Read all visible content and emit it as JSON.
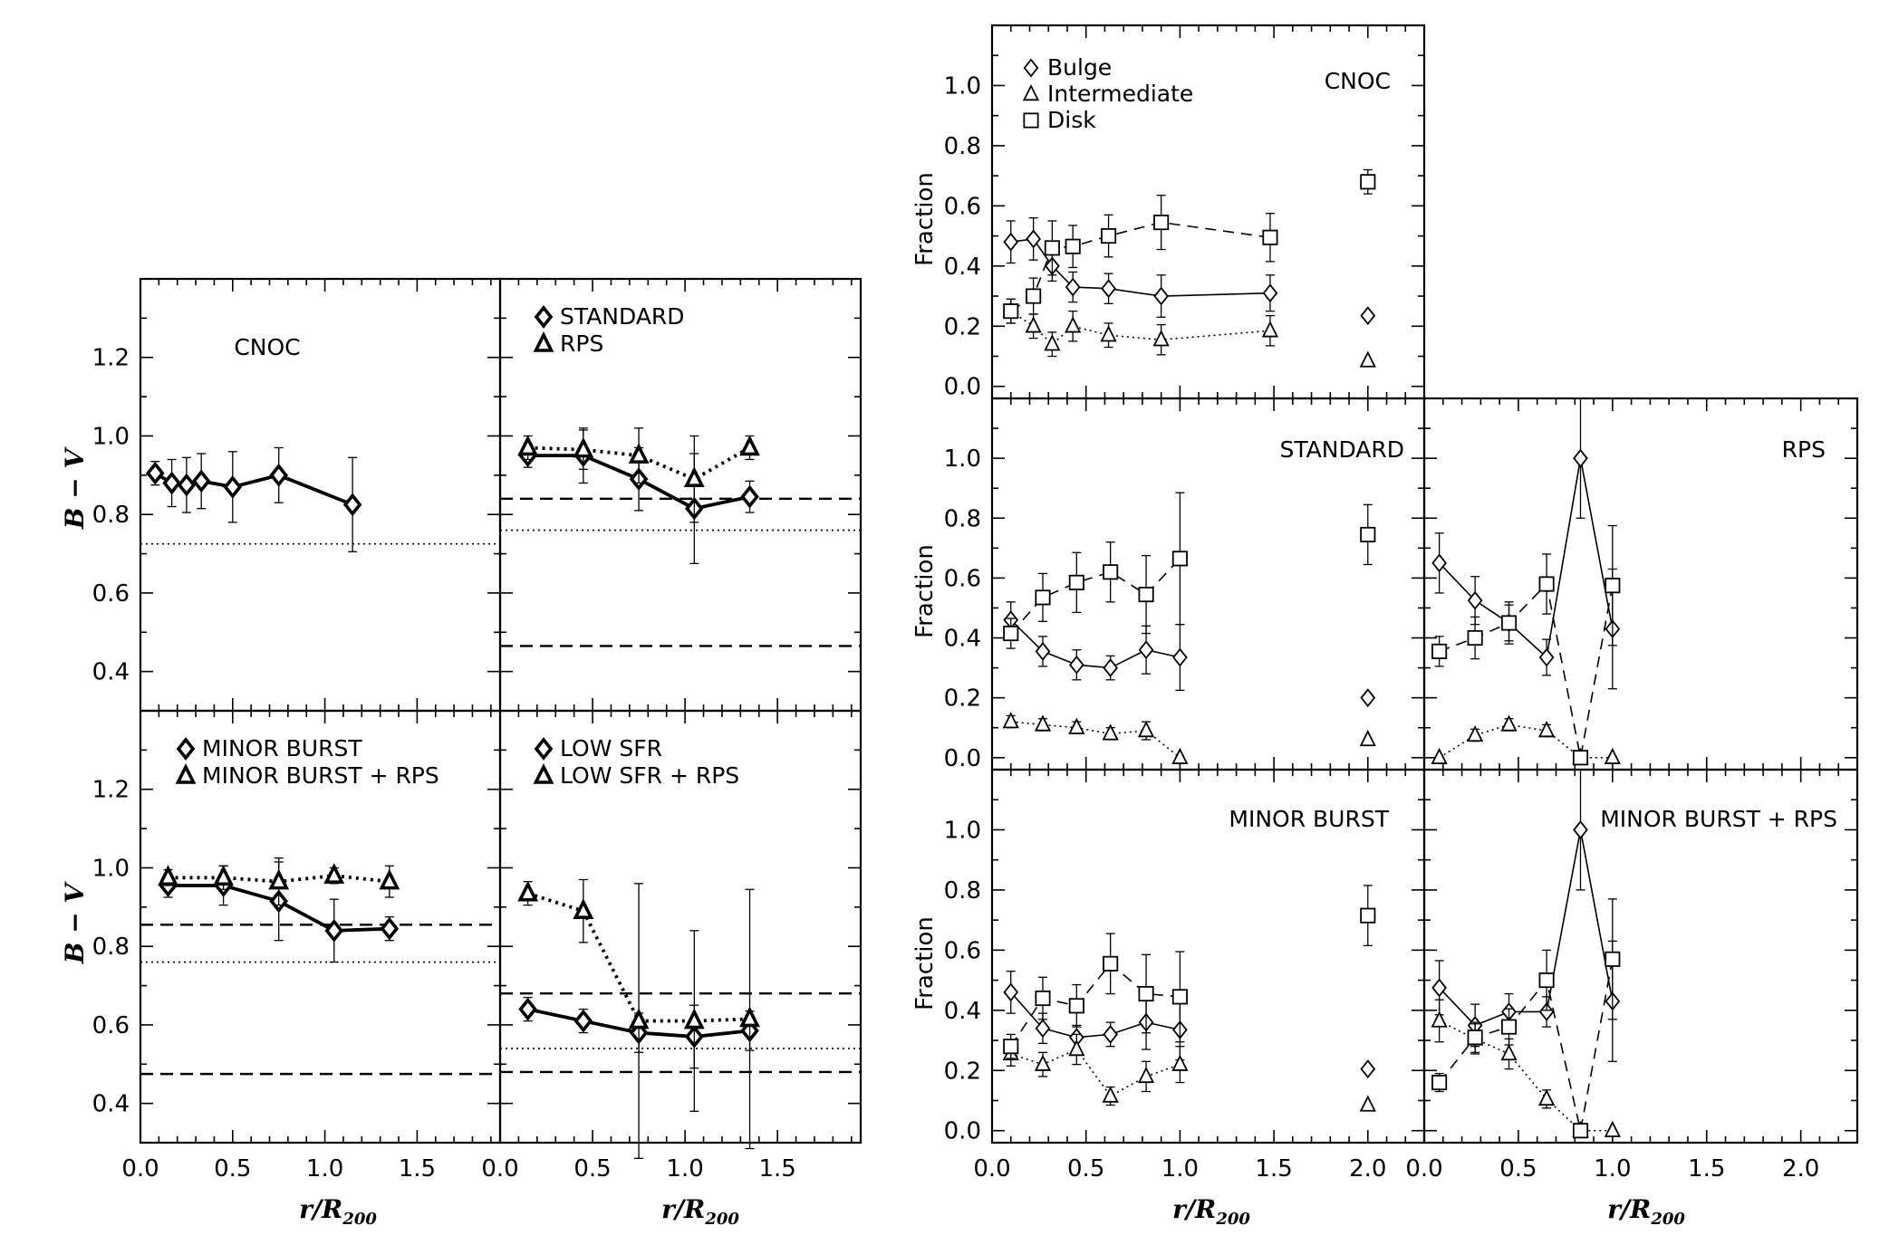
{
  "figure": {
    "left_ylabel": "B − V",
    "right_ylabel": "Fraction",
    "xlabel": "r/R200",
    "xlabel_main": "r/R",
    "xlabel_sub": "200"
  },
  "chart_data": [
    {
      "id": "bv-cnoc",
      "type": "line",
      "title": "CNOC",
      "xlim": [
        0,
        1.95
      ],
      "ylim": [
        0.3,
        1.4
      ],
      "yticks": [
        0.4,
        0.6,
        0.8,
        1.0,
        1.2
      ],
      "ylabel": "B − V",
      "xlabel": "",
      "legend": [],
      "hlines": [
        {
          "y": 0.725,
          "style": "dotted"
        }
      ],
      "series": [
        {
          "name": "CNOC",
          "marker": "diamond",
          "line": "solid",
          "weight": "bold",
          "x": [
            0.08,
            0.17,
            0.25,
            0.33,
            0.5,
            0.75,
            1.15
          ],
          "y": [
            0.905,
            0.88,
            0.875,
            0.885,
            0.87,
            0.9,
            0.825
          ],
          "err": [
            0.03,
            0.06,
            0.07,
            0.07,
            0.09,
            0.07,
            0.12
          ]
        }
      ]
    },
    {
      "id": "bv-standard",
      "type": "line",
      "title": "",
      "xlim": [
        0,
        1.95
      ],
      "ylim": [
        0.3,
        1.4
      ],
      "ylabel": "",
      "xlabel": "",
      "legend": [
        {
          "label": "STANDARD",
          "marker": "diamond"
        },
        {
          "label": "RPS",
          "marker": "triangle"
        }
      ],
      "hlines": [
        {
          "y": 0.84,
          "style": "dashed"
        },
        {
          "y": 0.76,
          "style": "dotted"
        },
        {
          "y": 0.465,
          "style": "dashed"
        }
      ],
      "series": [
        {
          "name": "STANDARD",
          "marker": "diamond",
          "line": "solid",
          "weight": "bold",
          "x": [
            0.15,
            0.45,
            0.75,
            1.05,
            1.35
          ],
          "y": [
            0.95,
            0.95,
            0.89,
            0.815,
            0.845
          ],
          "err": [
            0.03,
            0.07,
            0.08,
            0.14,
            0.04
          ]
        },
        {
          "name": "RPS",
          "marker": "triangle",
          "line": "dotted",
          "weight": "bold",
          "x": [
            0.15,
            0.45,
            0.75,
            1.05,
            1.35
          ],
          "y": [
            0.97,
            0.965,
            0.95,
            0.89,
            0.97
          ],
          "err": [
            0.03,
            0.05,
            0.07,
            0.11,
            0.03
          ]
        }
      ]
    },
    {
      "id": "bv-minor-burst",
      "type": "line",
      "title": "",
      "xlim": [
        0,
        1.95
      ],
      "ylim": [
        0.3,
        1.4
      ],
      "yticks": [
        0.4,
        0.6,
        0.8,
        1.0,
        1.2
      ],
      "xticks": [
        0.0,
        0.5,
        1.0,
        1.5
      ],
      "ylabel": "B − V",
      "xlabel": "r/R200",
      "legend": [
        {
          "label": "MINOR BURST",
          "marker": "diamond"
        },
        {
          "label": "MINOR BURST + RPS",
          "marker": "triangle"
        }
      ],
      "hlines": [
        {
          "y": 0.855,
          "style": "dashed"
        },
        {
          "y": 0.76,
          "style": "dotted"
        },
        {
          "y": 0.475,
          "style": "dashed"
        }
      ],
      "series": [
        {
          "name": "MINOR BURST",
          "marker": "diamond",
          "line": "solid",
          "weight": "bold",
          "x": [
            0.15,
            0.45,
            0.75,
            1.05,
            1.35
          ],
          "y": [
            0.955,
            0.955,
            0.915,
            0.84,
            0.845
          ],
          "err": [
            0.03,
            0.05,
            0.1,
            0.08,
            0.03
          ]
        },
        {
          "name": "MINOR BURST + RPS",
          "marker": "triangle",
          "line": "dotted",
          "weight": "bold",
          "x": [
            0.15,
            0.45,
            0.75,
            1.05,
            1.35
          ],
          "y": [
            0.975,
            0.975,
            0.965,
            0.98,
            0.965
          ],
          "err": [
            0.02,
            0.03,
            0.06,
            0.02,
            0.04
          ]
        }
      ]
    },
    {
      "id": "bv-low-sfr",
      "type": "line",
      "title": "",
      "xlim": [
        0,
        1.95
      ],
      "ylim": [
        0.3,
        1.4
      ],
      "xticks": [
        0.0,
        0.5,
        1.0,
        1.5
      ],
      "ylabel": "",
      "xlabel": "r/R200",
      "legend": [
        {
          "label": "LOW SFR",
          "marker": "diamond"
        },
        {
          "label": "LOW SFR + RPS",
          "marker": "triangle"
        }
      ],
      "hlines": [
        {
          "y": 0.68,
          "style": "dashed"
        },
        {
          "y": 0.54,
          "style": "dotted"
        },
        {
          "y": 0.48,
          "style": "dashed"
        }
      ],
      "series": [
        {
          "name": "LOW SFR",
          "marker": "diamond",
          "line": "solid",
          "weight": "bold",
          "x": [
            0.15,
            0.45,
            0.75,
            1.05,
            1.35
          ],
          "y": [
            0.64,
            0.61,
            0.58,
            0.57,
            0.585
          ],
          "err": [
            0.03,
            0.03,
            0.05,
            0.08,
            0.05
          ]
        },
        {
          "name": "LOW SFR + RPS",
          "marker": "triangle",
          "line": "dotted",
          "weight": "bold",
          "x": [
            0.15,
            0.45,
            0.75,
            1.05,
            1.35
          ],
          "y": [
            0.935,
            0.89,
            0.61,
            0.61,
            0.615
          ],
          "err": [
            0.03,
            0.08,
            0.35,
            0.23,
            0.33
          ]
        }
      ]
    },
    {
      "id": "frac-cnoc",
      "type": "line",
      "title": "CNOC",
      "xlim": [
        0,
        2.3
      ],
      "ylim": [
        -0.04,
        1.2
      ],
      "yticks": [
        0.0,
        0.2,
        0.4,
        0.6,
        0.8,
        1.0
      ],
      "ylabel": "Fraction",
      "xlabel": "",
      "legend": [
        {
          "label": "Bulge",
          "marker": "diamond"
        },
        {
          "label": "Intermediate",
          "marker": "triangle"
        },
        {
          "label": "Disk",
          "marker": "square"
        }
      ],
      "series": [
        {
          "name": "Bulge",
          "marker": "diamond",
          "line": "solid",
          "x": [
            0.1,
            0.22,
            0.32,
            0.43,
            0.62,
            0.9,
            1.48
          ],
          "y": [
            0.48,
            0.49,
            0.4,
            0.33,
            0.325,
            0.3,
            0.31
          ],
          "err": [
            0.07,
            0.07,
            0.05,
            0.05,
            0.05,
            0.07,
            0.06
          ]
        },
        {
          "name": "Intermediate",
          "marker": "triangle",
          "line": "dotted",
          "x": [
            0.1,
            0.22,
            0.32,
            0.43,
            0.62,
            0.9,
            1.48
          ],
          "y": [
            0.25,
            0.2,
            0.14,
            0.2,
            0.17,
            0.155,
            0.185
          ],
          "err": [
            0.04,
            0.04,
            0.04,
            0.05,
            0.04,
            0.05,
            0.05
          ]
        },
        {
          "name": "Disk",
          "marker": "square",
          "line": "dashed",
          "x": [
            0.1,
            0.22,
            0.32,
            0.43,
            0.62,
            0.9,
            1.48
          ],
          "y": [
            0.25,
            0.3,
            0.46,
            0.465,
            0.5,
            0.545,
            0.495
          ],
          "err": [
            0.04,
            0.06,
            0.09,
            0.07,
            0.07,
            0.09,
            0.08
          ]
        },
        {
          "name": "Bulge (total)",
          "marker": "diamond",
          "line": "none",
          "x": [
            2.0
          ],
          "y": [
            0.235
          ],
          "err": [
            0.0
          ]
        },
        {
          "name": "Intermediate (total)",
          "marker": "triangle",
          "line": "none",
          "x": [
            2.0
          ],
          "y": [
            0.085
          ],
          "err": [
            0.0
          ]
        },
        {
          "name": "Disk (total)",
          "marker": "square",
          "line": "none",
          "x": [
            2.0
          ],
          "y": [
            0.68
          ],
          "err": [
            0.04
          ]
        }
      ]
    },
    {
      "id": "frac-standard",
      "type": "line",
      "title": "STANDARD",
      "xlim": [
        0,
        2.3
      ],
      "ylim": [
        -0.04,
        1.2
      ],
      "yticks": [
        0.0,
        0.2,
        0.4,
        0.6,
        0.8,
        1.0
      ],
      "ylabel": "Fraction",
      "xlabel": "",
      "legend": [],
      "series": [
        {
          "name": "Bulge",
          "marker": "diamond",
          "line": "solid",
          "x": [
            0.1,
            0.27,
            0.45,
            0.63,
            0.82,
            1.0
          ],
          "y": [
            0.46,
            0.355,
            0.31,
            0.3,
            0.36,
            0.335
          ],
          "err": [
            0.06,
            0.05,
            0.05,
            0.04,
            0.08,
            0.11
          ]
        },
        {
          "name": "Intermediate",
          "marker": "triangle",
          "line": "dotted",
          "x": [
            0.1,
            0.27,
            0.45,
            0.63,
            0.82,
            1.0
          ],
          "y": [
            0.12,
            0.11,
            0.1,
            0.08,
            0.09,
            0.0
          ],
          "err": [
            0.02,
            0.02,
            0.02,
            0.02,
            0.03,
            0.0
          ]
        },
        {
          "name": "Disk",
          "marker": "square",
          "line": "dashed",
          "x": [
            0.1,
            0.27,
            0.45,
            0.63,
            0.82,
            1.0
          ],
          "y": [
            0.415,
            0.535,
            0.585,
            0.62,
            0.545,
            0.665
          ],
          "err": [
            0.05,
            0.08,
            0.1,
            0.1,
            0.13,
            0.22
          ]
        },
        {
          "name": "Bulge (total)",
          "marker": "diamond",
          "line": "none",
          "x": [
            2.0
          ],
          "y": [
            0.2
          ],
          "err": [
            0.0
          ]
        },
        {
          "name": "Intermediate (total)",
          "marker": "triangle",
          "line": "none",
          "x": [
            2.0
          ],
          "y": [
            0.06
          ],
          "err": [
            0.0
          ]
        },
        {
          "name": "Disk (total)",
          "marker": "square",
          "line": "none",
          "x": [
            2.0
          ],
          "y": [
            0.745
          ],
          "err": [
            0.1
          ]
        }
      ]
    },
    {
      "id": "frac-rps",
      "type": "line",
      "title": "RPS",
      "xlim": [
        0,
        2.3
      ],
      "ylim": [
        -0.04,
        1.2
      ],
      "ylabel": "",
      "xlabel": "",
      "legend": [],
      "series": [
        {
          "name": "Bulge",
          "marker": "diamond",
          "line": "solid",
          "x": [
            0.08,
            0.27,
            0.45,
            0.65,
            0.83,
            1.0
          ],
          "y": [
            0.65,
            0.525,
            0.45,
            0.335,
            1.0,
            0.43
          ],
          "err": [
            0.1,
            0.08,
            0.06,
            0.06,
            0.2,
            0.2
          ]
        },
        {
          "name": "Intermediate",
          "marker": "triangle",
          "line": "dotted",
          "x": [
            0.08,
            0.27,
            0.45,
            0.65,
            0.83,
            1.0
          ],
          "y": [
            0.0,
            0.075,
            0.11,
            0.09,
            0.0,
            0.0
          ],
          "err": [
            0.0,
            0.02,
            0.02,
            0.02,
            0.0,
            0.0
          ]
        },
        {
          "name": "Disk",
          "marker": "square",
          "line": "dashed",
          "x": [
            0.08,
            0.27,
            0.45,
            0.65,
            0.83,
            1.0
          ],
          "y": [
            0.355,
            0.4,
            0.45,
            0.58,
            0.0,
            0.575
          ],
          "err": [
            0.05,
            0.07,
            0.07,
            0.1,
            0.0,
            0.2
          ]
        }
      ]
    },
    {
      "id": "frac-minor-burst",
      "type": "line",
      "title": "MINOR BURST",
      "xlim": [
        0,
        2.3
      ],
      "ylim": [
        -0.04,
        1.2
      ],
      "yticks": [
        0.0,
        0.2,
        0.4,
        0.6,
        0.8,
        1.0
      ],
      "xticks": [
        0.0,
        0.5,
        1.0,
        1.5,
        2.0
      ],
      "ylabel": "Fraction",
      "xlabel": "r/R200",
      "legend": [],
      "series": [
        {
          "name": "Bulge",
          "marker": "diamond",
          "line": "solid",
          "x": [
            0.1,
            0.27,
            0.45,
            0.63,
            0.82,
            1.0
          ],
          "y": [
            0.46,
            0.34,
            0.31,
            0.32,
            0.36,
            0.335
          ],
          "err": [
            0.07,
            0.05,
            0.04,
            0.04,
            0.09,
            0.1
          ]
        },
        {
          "name": "Intermediate",
          "marker": "triangle",
          "line": "dotted",
          "x": [
            0.1,
            0.27,
            0.45,
            0.63,
            0.82,
            1.0
          ],
          "y": [
            0.255,
            0.22,
            0.27,
            0.115,
            0.18,
            0.22
          ],
          "err": [
            0.04,
            0.04,
            0.05,
            0.03,
            0.05,
            0.06
          ]
        },
        {
          "name": "Disk",
          "marker": "square",
          "line": "dashed",
          "x": [
            0.1,
            0.27,
            0.45,
            0.63,
            0.82,
            1.0
          ],
          "y": [
            0.28,
            0.44,
            0.415,
            0.555,
            0.455,
            0.445
          ],
          "err": [
            0.04,
            0.07,
            0.07,
            0.1,
            0.13,
            0.15
          ]
        },
        {
          "name": "Bulge (total)",
          "marker": "diamond",
          "line": "none",
          "x": [
            2.0
          ],
          "y": [
            0.205
          ],
          "err": [
            0.0
          ]
        },
        {
          "name": "Intermediate (total)",
          "marker": "triangle",
          "line": "none",
          "x": [
            2.0
          ],
          "y": [
            0.085
          ],
          "err": [
            0.0
          ]
        },
        {
          "name": "Disk (total)",
          "marker": "square",
          "line": "none",
          "x": [
            2.0
          ],
          "y": [
            0.715
          ],
          "err": [
            0.1
          ]
        }
      ]
    },
    {
      "id": "frac-minor-burst-rps",
      "type": "line",
      "title": "MINOR BURST + RPS",
      "xlim": [
        0,
        2.3
      ],
      "ylim": [
        -0.04,
        1.2
      ],
      "xticks": [
        0.0,
        0.5,
        1.0,
        1.5,
        2.0
      ],
      "ylabel": "",
      "xlabel": "r/R200",
      "legend": [],
      "series": [
        {
          "name": "Bulge",
          "marker": "diamond",
          "line": "solid",
          "x": [
            0.08,
            0.27,
            0.45,
            0.65,
            0.83,
            1.0
          ],
          "y": [
            0.475,
            0.35,
            0.395,
            0.395,
            1.0,
            0.43
          ],
          "err": [
            0.09,
            0.07,
            0.06,
            0.05,
            0.2,
            0.2
          ]
        },
        {
          "name": "Intermediate",
          "marker": "triangle",
          "line": "dotted",
          "x": [
            0.08,
            0.27,
            0.45,
            0.65,
            0.83,
            1.0
          ],
          "y": [
            0.365,
            0.305,
            0.255,
            0.105,
            0.0,
            0.0
          ],
          "err": [
            0.07,
            0.05,
            0.05,
            0.03,
            0.0,
            0.0
          ]
        },
        {
          "name": "Disk",
          "marker": "square",
          "line": "dashed",
          "x": [
            0.08,
            0.27,
            0.45,
            0.65,
            0.83,
            1.0
          ],
          "y": [
            0.16,
            0.31,
            0.345,
            0.5,
            0.0,
            0.57
          ],
          "err": [
            0.03,
            0.05,
            0.06,
            0.1,
            0.0,
            0.2
          ]
        }
      ]
    }
  ]
}
